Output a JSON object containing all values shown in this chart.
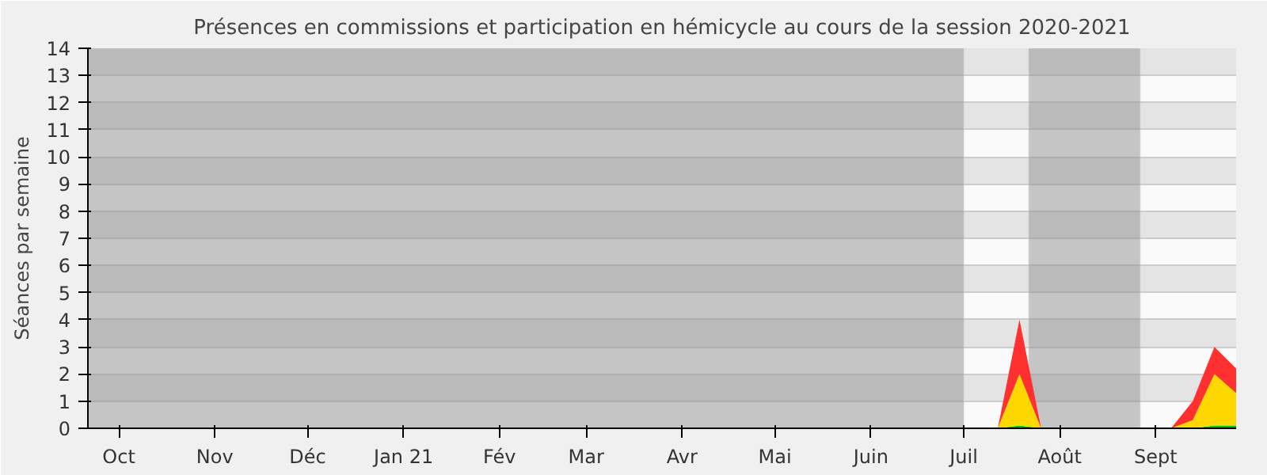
{
  "chart_data": {
    "type": "area",
    "stacked": true,
    "title": "Présences en commissions et participation en hémicycle au cours de la session 2020-2021",
    "ylabel": "Séances par semaine",
    "x": [
      "2020-09-21",
      "2020-09-28",
      "2020-10-05",
      "2020-10-12",
      "2020-10-19",
      "2020-10-26",
      "2020-11-02",
      "2020-11-09",
      "2020-11-16",
      "2020-11-23",
      "2020-11-30",
      "2020-12-07",
      "2020-12-14",
      "2020-12-21",
      "2020-12-28",
      "2021-01-04",
      "2021-01-11",
      "2021-01-18",
      "2021-01-25",
      "2021-02-01",
      "2021-02-08",
      "2021-02-15",
      "2021-02-22",
      "2021-03-01",
      "2021-03-08",
      "2021-03-15",
      "2021-03-22",
      "2021-03-29",
      "2021-04-05",
      "2021-04-12",
      "2021-04-19",
      "2021-04-26",
      "2021-05-03",
      "2021-05-10",
      "2021-05-17",
      "2021-05-24",
      "2021-05-31",
      "2021-06-07",
      "2021-06-14",
      "2021-06-21",
      "2021-06-28",
      "2021-07-05",
      "2021-07-12",
      "2021-07-19",
      "2021-07-26",
      "2021-08-02",
      "2021-08-09",
      "2021-08-16",
      "2021-08-23",
      "2021-08-30",
      "2021-09-06",
      "2021-09-13",
      "2021-09-20",
      "2021-09-27"
    ],
    "series": [
      {
        "color": "#00c800",
        "values": [
          0,
          0,
          0,
          0,
          0,
          0,
          0,
          0,
          0,
          0,
          0,
          0,
          0,
          0,
          0,
          0,
          0,
          0,
          0,
          0,
          0,
          0,
          0,
          0,
          0,
          0,
          0,
          0,
          0,
          0,
          0,
          0,
          0,
          0,
          0,
          0,
          0,
          0,
          0,
          0,
          0,
          0,
          0,
          0.1,
          0,
          0,
          0,
          0,
          0,
          0,
          0,
          0,
          0.1,
          0.1
        ]
      },
      {
        "color": "#ffd700",
        "values": [
          0,
          0,
          0,
          0,
          0,
          0,
          0,
          0,
          0,
          0,
          0,
          0,
          0,
          0,
          0,
          0,
          0,
          0,
          0,
          0,
          0,
          0,
          0,
          0,
          0,
          0,
          0,
          0,
          0,
          0,
          0,
          0,
          0,
          0,
          0,
          0,
          0,
          0,
          0,
          0,
          0,
          0,
          0,
          1.9,
          0,
          0,
          0,
          0,
          0,
          0,
          0,
          0.3,
          1.9,
          1.2
        ]
      },
      {
        "color": "#ff3030",
        "values": [
          0,
          0,
          0,
          0,
          0,
          0,
          0,
          0,
          0,
          0,
          0,
          0,
          0,
          0,
          0,
          0,
          0,
          0,
          0,
          0,
          0,
          0,
          0,
          0,
          0,
          0,
          0,
          0,
          0,
          0,
          0,
          0,
          0,
          0,
          0,
          0,
          0,
          0,
          0,
          0,
          0,
          0,
          0,
          2,
          0,
          0,
          0,
          0,
          0,
          0,
          0,
          0.7,
          1,
          0.9
        ]
      }
    ],
    "xlim": [
      "2020-09-21",
      "2021-09-27"
    ],
    "xticks": [
      {
        "value": "2020-10-01",
        "label": "Oct"
      },
      {
        "value": "2020-11-01",
        "label": "Nov"
      },
      {
        "value": "2020-12-01",
        "label": "Déc"
      },
      {
        "value": "2021-01-01",
        "label": "Jan 21"
      },
      {
        "value": "2021-02-01",
        "label": "Fév"
      },
      {
        "value": "2021-03-01",
        "label": "Mar"
      },
      {
        "value": "2021-04-01",
        "label": "Avr"
      },
      {
        "value": "2021-05-01",
        "label": "Mai"
      },
      {
        "value": "2021-06-01",
        "label": "Juin"
      },
      {
        "value": "2021-07-01",
        "label": "Juil"
      },
      {
        "value": "2021-08-01",
        "label": "Août"
      },
      {
        "value": "2021-09-01",
        "label": "Sept"
      }
    ],
    "ylim": [
      0,
      14
    ],
    "yticks": [
      0,
      1,
      2,
      3,
      4,
      5,
      6,
      7,
      8,
      9,
      10,
      11,
      12,
      13,
      14
    ],
    "grid": "y",
    "bands": [
      {
        "axis": "x",
        "from": "2020-09-21",
        "to": "2021-07-01",
        "color": "#909090"
      },
      {
        "axis": "x",
        "from": "2021-07-22",
        "to": "2021-08-27",
        "color": "#909090"
      }
    ]
  }
}
